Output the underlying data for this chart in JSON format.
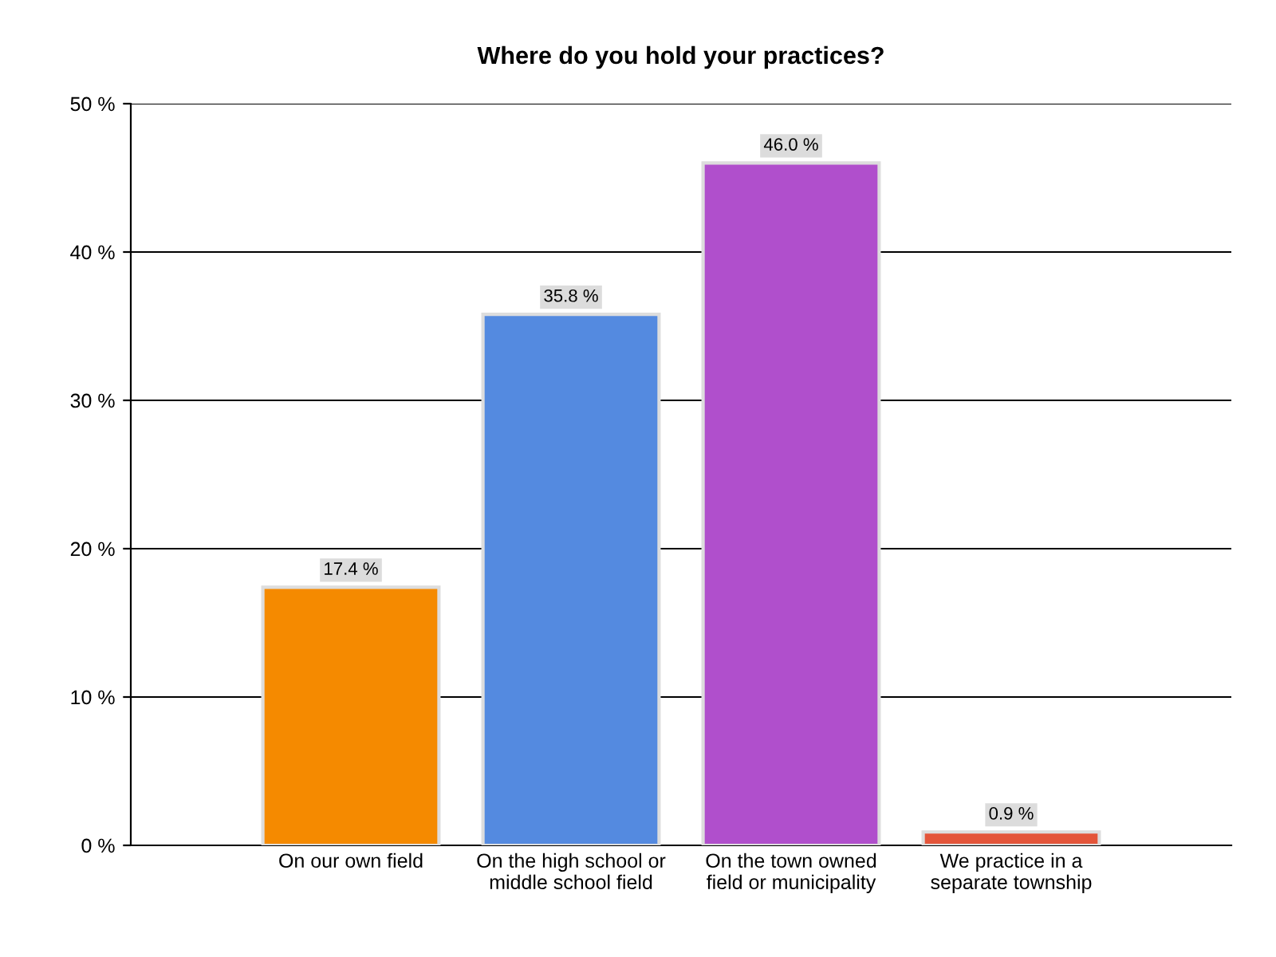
{
  "chart_data": {
    "type": "bar",
    "title": "Where do you hold your practices?",
    "categories": [
      "On our own field",
      "On the high school or\nmiddle school field",
      "On the town owned\nfield or municipality",
      "We practice in a\nseparate township"
    ],
    "values": [
      17.4,
      35.8,
      46.0,
      0.9
    ],
    "colors": [
      "#f58a00",
      "#548ae0",
      "#b04fcc",
      "#e4553a"
    ],
    "value_labels": [
      "17.4 %",
      "35.8 %",
      "46.0 %",
      "0.9 %"
    ],
    "ylim": [
      0,
      50
    ],
    "yticks": [
      {
        "value": 0,
        "label": "0 %"
      },
      {
        "value": 10,
        "label": "10 %"
      },
      {
        "value": 20,
        "label": "20 %"
      },
      {
        "value": 30,
        "label": "30 %"
      },
      {
        "value": 40,
        "label": "40 %"
      },
      {
        "value": 50,
        "label": "50 %"
      }
    ],
    "grid": "y",
    "legend": false
  }
}
